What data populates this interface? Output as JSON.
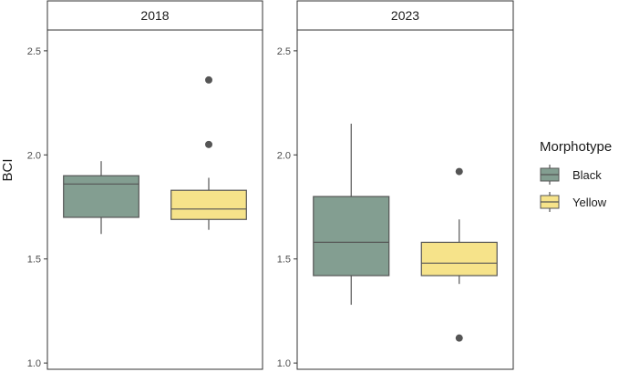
{
  "chart_data": {
    "type": "boxplot",
    "title": "",
    "xlabel": "",
    "ylabel": "BCI",
    "ylim": [
      0.97,
      2.6
    ],
    "yticks": [
      "1.0",
      "1.5",
      "2.0",
      "2.5"
    ],
    "grid": false,
    "legend": {
      "title": "Morphotype",
      "position": "right",
      "entries": [
        {
          "name": "Black",
          "color": "#839e91"
        },
        {
          "name": "Yellow",
          "color": "#f6e38a"
        }
      ]
    },
    "colors": {
      "Black": "#839e91",
      "Yellow": "#f6e38a",
      "line": "#555555"
    },
    "panels": [
      {
        "label": "2018",
        "boxes": [
          {
            "group": "Black",
            "whisker_low": 1.62,
            "q1": 1.7,
            "median": 1.86,
            "q3": 1.9,
            "whisker_high": 1.97,
            "outliers": []
          },
          {
            "group": "Yellow",
            "whisker_low": 1.64,
            "q1": 1.69,
            "median": 1.74,
            "q3": 1.83,
            "whisker_high": 1.89,
            "outliers": [
              2.05,
              2.36
            ]
          }
        ]
      },
      {
        "label": "2023",
        "boxes": [
          {
            "group": "Black",
            "whisker_low": 1.28,
            "q1": 1.42,
            "median": 1.58,
            "q3": 1.8,
            "whisker_high": 2.15,
            "outliers": []
          },
          {
            "group": "Yellow",
            "whisker_low": 1.38,
            "q1": 1.42,
            "median": 1.48,
            "q3": 1.58,
            "whisker_high": 1.69,
            "outliers": [
              1.92,
              1.12
            ]
          }
        ]
      }
    ]
  }
}
